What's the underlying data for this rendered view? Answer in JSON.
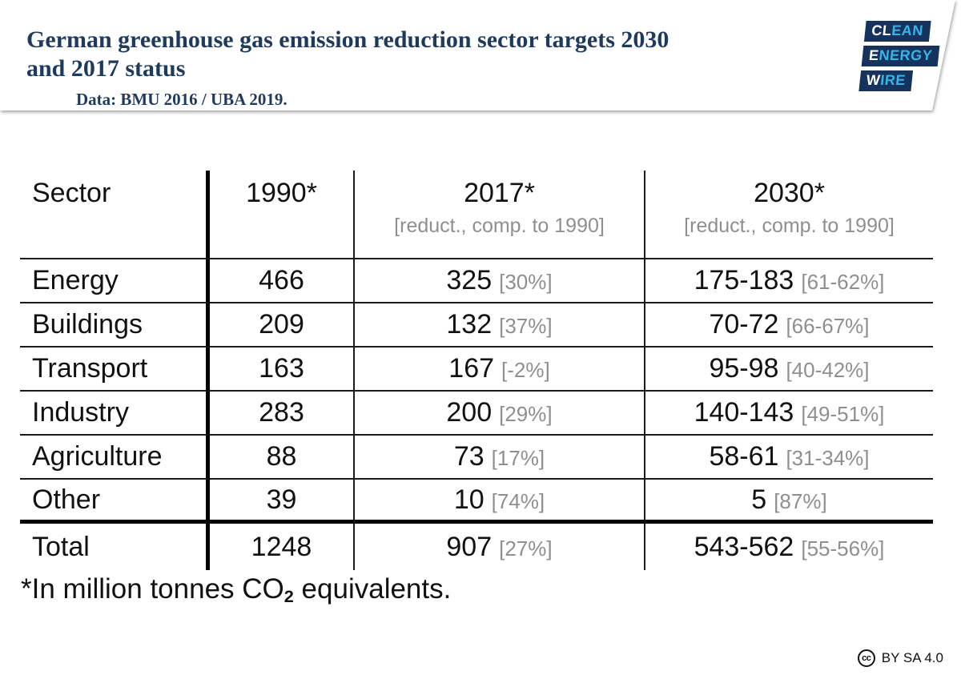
{
  "header": {
    "title_lines": [
      "German greenhouse gas emission reduction sector targets 2030",
      "and 2017 status"
    ],
    "subtitle": "Data: BMU 2016 / UBA 2019.",
    "logo_words": [
      {
        "first": "CL",
        "rest": "EAN"
      },
      {
        "first": "E",
        "rest": "NERGY"
      },
      {
        "first": "W",
        "rest": "IRE"
      }
    ]
  },
  "colors": {
    "navy": "#1e3a5f",
    "logo_navy": "#15335d",
    "logo_cyan": "#35b4e8",
    "gray": "#8f8f8f"
  },
  "table": {
    "columns": [
      {
        "label": "Sector",
        "sub": ""
      },
      {
        "label": "1990*",
        "sub": ""
      },
      {
        "label": "2017*",
        "sub": "[reduct., comp. to 1990]"
      },
      {
        "label": "2030*",
        "sub": "[reduct., comp. to 1990]"
      }
    ],
    "rows": [
      {
        "sector": "Energy",
        "v1990": "466",
        "v2017": "325",
        "p2017": "[30%]",
        "v2030": "175-183",
        "p2030": "[61-62%]",
        "heavy_rule_below": false
      },
      {
        "sector": "Buildings",
        "v1990": "209",
        "v2017": "132",
        "p2017": "[37%]",
        "v2030": "70-72",
        "p2030": "[66-67%]",
        "heavy_rule_below": false
      },
      {
        "sector": "Transport",
        "v1990": "163",
        "v2017": "167",
        "p2017": "[-2%]",
        "v2030": "95-98",
        "p2030": "[40-42%]",
        "heavy_rule_below": false
      },
      {
        "sector": "Industry",
        "v1990": "283",
        "v2017": "200",
        "p2017": "[29%]",
        "v2030": "140-143",
        "p2030": "[49-51%]",
        "heavy_rule_below": false
      },
      {
        "sector": "Agriculture",
        "v1990": "88",
        "v2017": "73",
        "p2017": "[17%]",
        "v2030": "58-61",
        "p2030": "[31-34%]",
        "heavy_rule_below": false
      },
      {
        "sector": "Other",
        "v1990": "39",
        "v2017": "10",
        "p2017": "[74%]",
        "v2030": "5",
        "p2030": "[87%]",
        "heavy_rule_below": true
      },
      {
        "sector": "Total",
        "v1990": "1248",
        "v2017": "907",
        "p2017": "[27%]",
        "v2030": "543-562",
        "p2030": "[55-56%]",
        "heavy_rule_below": false
      }
    ]
  },
  "footnote": {
    "prefix": "*In million tonnes CO",
    "sub": "2",
    "suffix": " equivalents."
  },
  "license": {
    "icon_label": "cc",
    "label": "BY SA 4.0"
  },
  "chart_data": {
    "type": "table",
    "title": "German greenhouse gas emission reduction sector targets 2030 and 2017 status",
    "subtitle": "Data: BMU 2016 / UBA 2019.",
    "unit_note": "*In million tonnes CO2 equivalents.",
    "columns": [
      "Sector",
      "1990*",
      "2017* [reduct., comp. to 1990]",
      "2030* [reduct., comp. to 1990]"
    ],
    "rows": [
      {
        "sector": "Energy",
        "y1990": 466,
        "y2017": 325,
        "reduction_2017": "30%",
        "target_2030": "175-183",
        "reduction_2030": "61-62%"
      },
      {
        "sector": "Buildings",
        "y1990": 209,
        "y2017": 132,
        "reduction_2017": "37%",
        "target_2030": "70-72",
        "reduction_2030": "66-67%"
      },
      {
        "sector": "Transport",
        "y1990": 163,
        "y2017": 167,
        "reduction_2017": "-2%",
        "target_2030": "95-98",
        "reduction_2030": "40-42%"
      },
      {
        "sector": "Industry",
        "y1990": 283,
        "y2017": 200,
        "reduction_2017": "29%",
        "target_2030": "140-143",
        "reduction_2030": "49-51%"
      },
      {
        "sector": "Agriculture",
        "y1990": 88,
        "y2017": 73,
        "reduction_2017": "17%",
        "target_2030": "58-61",
        "reduction_2030": "31-34%"
      },
      {
        "sector": "Other",
        "y1990": 39,
        "y2017": 10,
        "reduction_2017": "74%",
        "target_2030": "5",
        "reduction_2030": "87%"
      },
      {
        "sector": "Total",
        "y1990": 1248,
        "y2017": 907,
        "reduction_2017": "27%",
        "target_2030": "543-562",
        "reduction_2030": "55-56%"
      }
    ]
  }
}
